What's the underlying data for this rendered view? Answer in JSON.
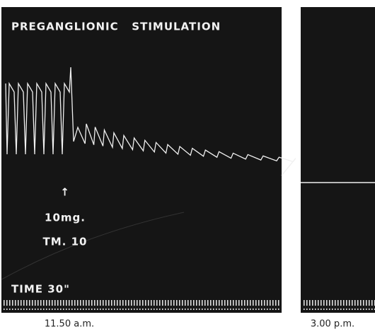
{
  "panels": [
    {
      "title": "PREGANGLIONIC   STIMULATION",
      "arrow_label": "↑",
      "dose": "10mg.",
      "drug": "TM. 10",
      "time_label": "TIME 30\"",
      "caption": "11.50 a.m."
    },
    {
      "caption": "3.00 p.m."
    }
  ]
}
